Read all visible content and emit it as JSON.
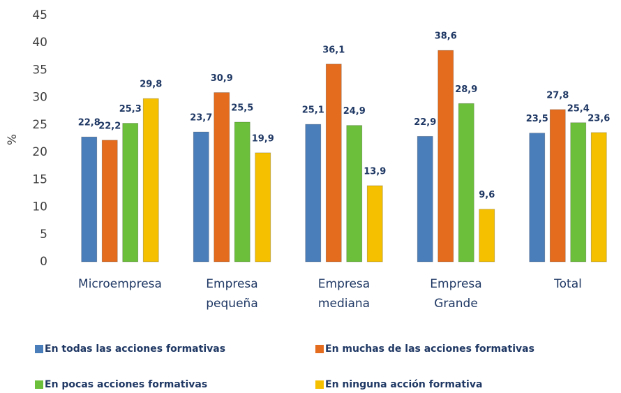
{
  "chart_data": {
    "type": "bar",
    "y_label": "%",
    "categories": [
      "Microempresa",
      "Empresa pequeña",
      "Empresa mediana",
      "Empresa Grande",
      "Total"
    ],
    "series": [
      {
        "name": "En todas las acciones formativas",
        "color": "#4a7ebb",
        "values": [
          22.8,
          23.7,
          25.1,
          22.9,
          23.5
        ],
        "value_labels": [
          "22,8",
          "23,7",
          "25,1",
          "22,9",
          "23,5"
        ]
      },
      {
        "name": "En muchas de las acciones formativas",
        "color": "#e46c1e",
        "values": [
          22.2,
          30.9,
          36.1,
          38.6,
          27.8
        ],
        "value_labels": [
          "22,2",
          "30,9",
          "36,1",
          "38,6",
          "27,8"
        ]
      },
      {
        "name": "En pocas acciones formativas",
        "color": "#6cbf3a",
        "values": [
          25.3,
          25.5,
          24.9,
          28.9,
          25.4
        ],
        "value_labels": [
          "25,3",
          "25,5",
          "24,9",
          "28,9",
          "25,4"
        ]
      },
      {
        "name": "En ninguna acción formativa",
        "color": "#f5c000",
        "values": [
          29.8,
          19.9,
          13.9,
          9.6,
          23.6
        ],
        "value_labels": [
          "29,8",
          "19,9",
          "13,9",
          "9,6",
          "23,6"
        ]
      }
    ],
    "ylim": [
      0,
      45
    ],
    "yticks": [
      0,
      5,
      10,
      15,
      20,
      25,
      30,
      35,
      40,
      45
    ],
    "grid": false,
    "legend": "bottom"
  }
}
